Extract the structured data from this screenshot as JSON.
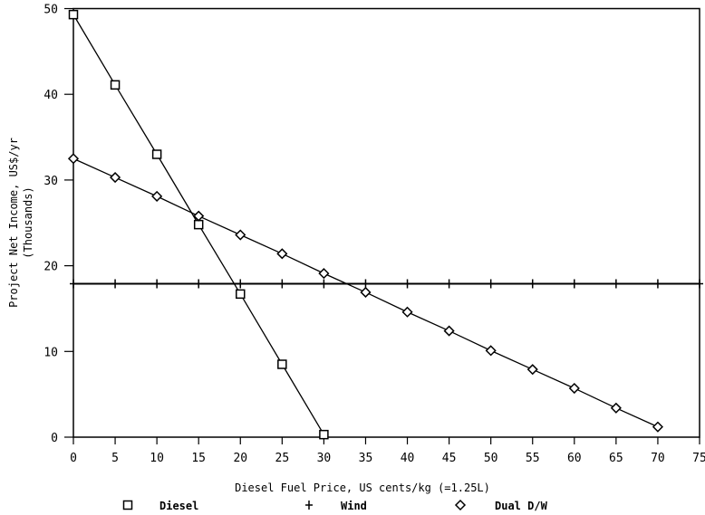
{
  "chart_data": {
    "type": "line",
    "title": "",
    "xlabel": "Diesel Fuel Price, US cents/kg (=1.25L)",
    "ylabel": "Project Net Income, US$/yr",
    "ylabel2": "(Thousands)",
    "xlim": [
      0,
      75
    ],
    "ylim": [
      0,
      50
    ],
    "xticks": [
      0,
      5,
      10,
      15,
      20,
      25,
      30,
      35,
      40,
      45,
      50,
      55,
      60,
      65,
      70,
      75
    ],
    "yticks": [
      0,
      10,
      20,
      30,
      40,
      50
    ],
    "grid": false,
    "legend_position": "bottom",
    "series": [
      {
        "name": "Diesel",
        "marker": "square",
        "x": [
          0,
          5,
          10,
          15,
          20,
          25,
          30
        ],
        "y": [
          49.3,
          41.1,
          33.0,
          24.8,
          16.7,
          8.5,
          0.3
        ]
      },
      {
        "name": "Wind",
        "marker": "plus",
        "x": [
          0,
          5,
          10,
          15,
          20,
          25,
          30,
          35,
          40,
          45,
          50,
          55,
          60,
          65,
          70,
          75
        ],
        "y": [
          17.9,
          17.9,
          17.9,
          17.9,
          17.9,
          17.9,
          17.9,
          17.9,
          17.9,
          17.9,
          17.9,
          17.9,
          17.9,
          17.9,
          17.9,
          17.9
        ]
      },
      {
        "name": "Dual D/W",
        "marker": "diamond",
        "x": [
          0,
          5,
          10,
          15,
          20,
          25,
          30,
          35,
          40,
          45,
          50,
          55,
          60,
          65,
          70
        ],
        "y": [
          32.5,
          30.3,
          28.1,
          25.8,
          23.6,
          21.4,
          19.1,
          16.9,
          14.6,
          12.4,
          10.1,
          7.9,
          5.7,
          3.4,
          1.2
        ]
      }
    ]
  }
}
